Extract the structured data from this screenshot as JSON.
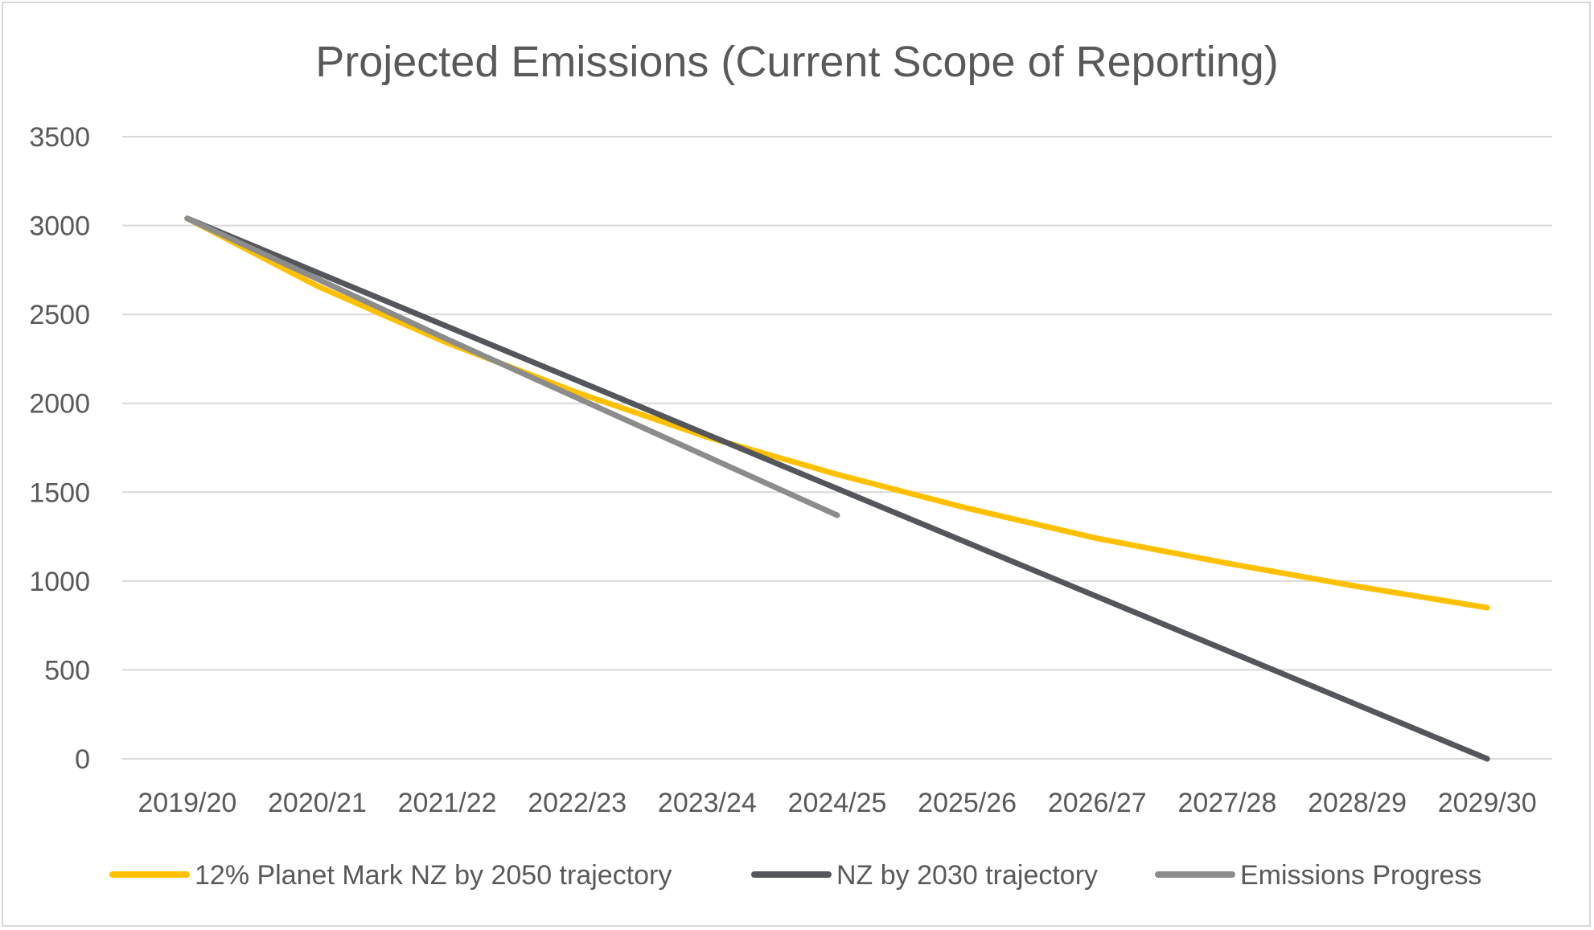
{
  "chart_data": {
    "type": "line",
    "title": "Projected Emissions (Current Scope of Reporting)",
    "xlabel": "",
    "ylabel": "",
    "categories": [
      "2019/20",
      "2020/21",
      "2021/22",
      "2022/23",
      "2023/24",
      "2024/25",
      "2025/26",
      "2026/27",
      "2027/28",
      "2028/29",
      "2029/30"
    ],
    "ylim": [
      0,
      3500
    ],
    "yticks": [
      0,
      500,
      1000,
      1500,
      2000,
      2500,
      3000,
      3500
    ],
    "grid": true,
    "legend_position": "bottom",
    "series": [
      {
        "name": "12% Planet Mark NZ by 2050 trajectory",
        "color": "#FFC000",
        "values": [
          3040,
          2660,
          2340,
          2060,
          1810,
          1600,
          1410,
          1240,
          1100,
          970,
          850
        ]
      },
      {
        "name": "NZ by 2030 trajectory",
        "color": "#53565A",
        "values": [
          3040,
          2736,
          2432,
          2128,
          1824,
          1520,
          1216,
          912,
          608,
          304,
          0
        ]
      },
      {
        "name": "Emissions Progress",
        "color": "#8C8C8C",
        "values": [
          3040,
          2700,
          2360,
          2030,
          1700,
          1370,
          null,
          null,
          null,
          null,
          null
        ]
      }
    ]
  }
}
